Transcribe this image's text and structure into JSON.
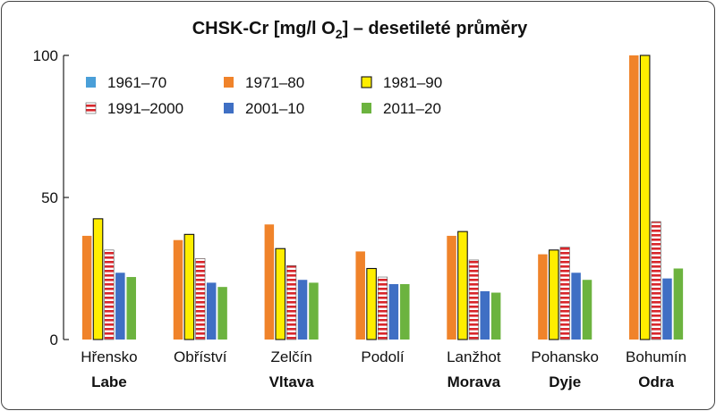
{
  "chart_data": {
    "type": "bar",
    "title": {
      "main": "CHSK-Cr [mg/l O",
      "subscript": "2",
      "rest": "] – desetileté průměry"
    },
    "ylim": [
      0,
      100
    ],
    "yticks": [
      0,
      50,
      100
    ],
    "grid": false,
    "legend_position": "top-left",
    "categories": [
      "Hřensko",
      "Obříství",
      "Zelčín",
      "Podolí",
      "Lanžhot",
      "Pohansko",
      "Bohumín"
    ],
    "rivers": [
      {
        "label": "Labe",
        "under": "Hřensko"
      },
      {
        "label": "Vltava",
        "under": "Zelčín"
      },
      {
        "label": "Morava",
        "under": "Lanžhot"
      },
      {
        "label": "Dyje",
        "under": "Pohansko"
      },
      {
        "label": "Odra",
        "under": "Bohumín"
      }
    ],
    "series": [
      {
        "name": "1961–70",
        "color": "#4a9fd8",
        "style": "solid",
        "values": [
          null,
          null,
          null,
          null,
          null,
          null,
          null
        ]
      },
      {
        "name": "1971–80",
        "color": "#f0832a",
        "style": "solid",
        "values": [
          36.5,
          35,
          40.5,
          31,
          36.5,
          30,
          100
        ]
      },
      {
        "name": "1981–90",
        "color": "#ffee00",
        "style": "outlined",
        "values": [
          42.5,
          37,
          32,
          25,
          38,
          31.5,
          100
        ]
      },
      {
        "name": "1991–2000",
        "color": "#d8262b",
        "style": "striped",
        "values": [
          31.5,
          28.5,
          26,
          22,
          28,
          32.5,
          41.5
        ]
      },
      {
        "name": "2001–10",
        "color": "#3f6fc4",
        "style": "solid",
        "values": [
          23.5,
          20,
          21,
          19.5,
          17,
          23.5,
          21.5
        ]
      },
      {
        "name": "2011–20",
        "color": "#6cb33f",
        "style": "solid",
        "values": [
          22,
          18.5,
          20,
          19.5,
          16.5,
          21,
          25
        ]
      }
    ]
  }
}
